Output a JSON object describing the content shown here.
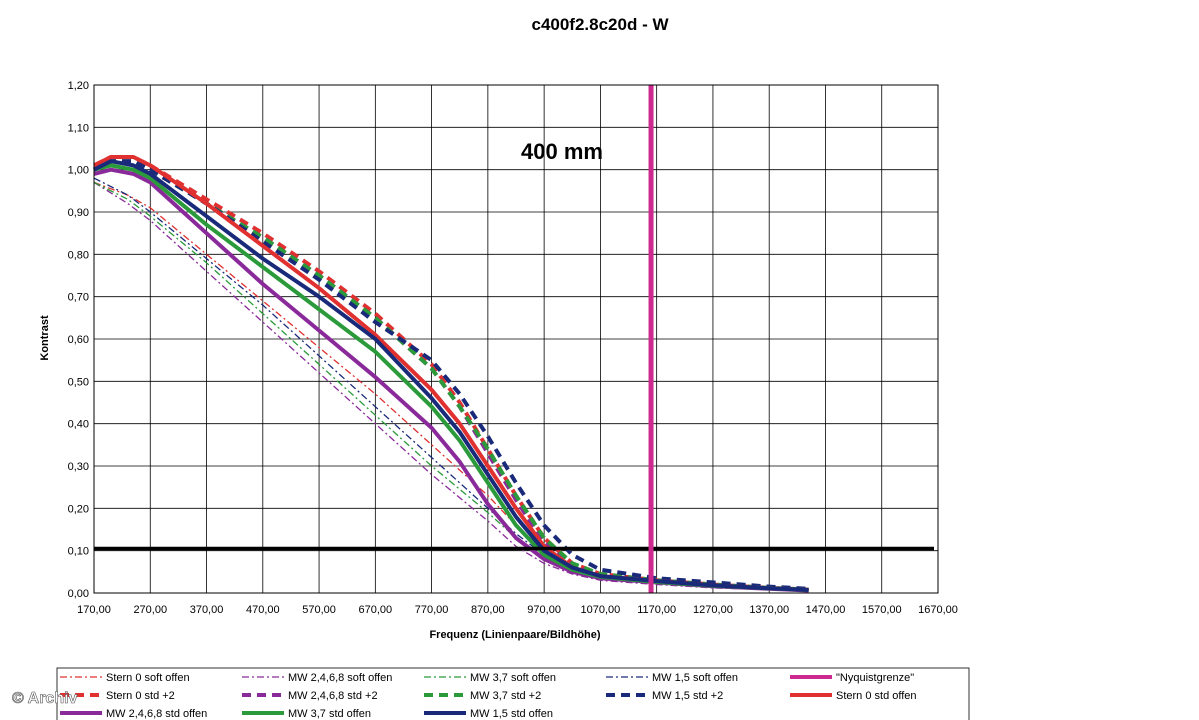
{
  "chart_data": {
    "type": "line",
    "title": "c400f2.8c20d - W",
    "xlabel": "Frequenz (Linienpaare/Bildhöhe)",
    "ylabel": "Kontrast",
    "xlim": [
      170,
      1670
    ],
    "ylim": [
      0,
      1.2
    ],
    "x_ticks": [
      "170,00",
      "270,00",
      "370,00",
      "470,00",
      "570,00",
      "670,00",
      "770,00",
      "870,00",
      "970,00",
      "1070,00",
      "1170,00",
      "1270,00",
      "1370,00",
      "1470,00",
      "1570,00",
      "1670,00"
    ],
    "y_ticks": [
      "0,00",
      "0,10",
      "0,20",
      "0,30",
      "0,40",
      "0,50",
      "0,60",
      "0,70",
      "0,80",
      "0,90",
      "1,00",
      "1,10",
      "1,20"
    ],
    "grid": true,
    "legend_position": "bottom",
    "annotation": "400 mm",
    "watermark": "© Archiv",
    "threshold_line": {
      "y": 0.105,
      "color": "#000000"
    },
    "nyquist_line": {
      "x": 1160,
      "color": "#cc2a8e"
    },
    "series": [
      {
        "name": "Stern 0 soft offen",
        "color": "#e03030",
        "style": "dashdot",
        "width": 1.3,
        "x": [
          170,
          230,
          270,
          370,
          470,
          570,
          670,
          770,
          870,
          920,
          970,
          1020,
          1070,
          1170,
          1270,
          1370,
          1440
        ],
        "y": [
          0.97,
          0.94,
          0.91,
          0.8,
          0.69,
          0.58,
          0.47,
          0.35,
          0.23,
          0.16,
          0.1,
          0.06,
          0.04,
          0.025,
          0.015,
          0.01,
          0.005
        ]
      },
      {
        "name": "MW 2,4,6,8 soft offen",
        "color": "#8a2a9a",
        "style": "dashdot",
        "width": 1.3,
        "x": [
          170,
          230,
          270,
          370,
          470,
          570,
          670,
          770,
          870,
          920,
          970,
          1020,
          1070,
          1170,
          1270,
          1370,
          1440
        ],
        "y": [
          0.97,
          0.92,
          0.88,
          0.76,
          0.64,
          0.52,
          0.4,
          0.28,
          0.17,
          0.11,
          0.07,
          0.045,
          0.03,
          0.02,
          0.012,
          0.008,
          0.005
        ]
      },
      {
        "name": "MW 3,7 soft offen",
        "color": "#2a9a3a",
        "style": "dashdot",
        "width": 1.3,
        "x": [
          170,
          230,
          270,
          370,
          470,
          570,
          670,
          770,
          870,
          920,
          970,
          1020,
          1070,
          1170,
          1270,
          1370,
          1440
        ],
        "y": [
          0.97,
          0.93,
          0.89,
          0.78,
          0.66,
          0.54,
          0.42,
          0.3,
          0.19,
          0.13,
          0.08,
          0.05,
          0.035,
          0.022,
          0.014,
          0.009,
          0.005
        ]
      },
      {
        "name": "MW 1,5 soft offen",
        "color": "#1a2a7a",
        "style": "dashdot",
        "width": 1.3,
        "x": [
          170,
          230,
          270,
          370,
          470,
          570,
          670,
          770,
          870,
          920,
          970,
          1020,
          1070,
          1170,
          1270,
          1370,
          1440
        ],
        "y": [
          0.98,
          0.94,
          0.9,
          0.79,
          0.68,
          0.56,
          0.44,
          0.32,
          0.2,
          0.14,
          0.09,
          0.055,
          0.038,
          0.024,
          0.015,
          0.01,
          0.006
        ]
      },
      {
        "name": "\"Nyquistgrenze\"",
        "color": "#cc2a8e",
        "style": "solid",
        "width": 5,
        "x": [
          1160,
          1160
        ],
        "y": [
          0,
          1.2
        ]
      },
      {
        "name": "Stern 0 std +2",
        "color": "#e03030",
        "style": "dash",
        "width": 4,
        "x": [
          170,
          200,
          240,
          270,
          370,
          470,
          570,
          670,
          770,
          820,
          870,
          920,
          970,
          1020,
          1070,
          1170,
          1270,
          1370,
          1440
        ],
        "y": [
          1.01,
          1.03,
          1.03,
          1.01,
          0.93,
          0.85,
          0.76,
          0.66,
          0.54,
          0.45,
          0.34,
          0.23,
          0.13,
          0.07,
          0.045,
          0.03,
          0.02,
          0.012,
          0.008
        ]
      },
      {
        "name": "MW 2,4,6,8 std +2",
        "color": "#8a2a9a",
        "style": "dash",
        "width": 4,
        "x": [
          170,
          200,
          240,
          270,
          370,
          470,
          570,
          670,
          770,
          820,
          870,
          920,
          970,
          1020,
          1070,
          1170,
          1270,
          1370,
          1440
        ],
        "y": [
          1.0,
          1.02,
          1.02,
          1.0,
          0.92,
          0.84,
          0.75,
          0.65,
          0.53,
          0.44,
          0.33,
          0.22,
          0.12,
          0.065,
          0.04,
          0.028,
          0.018,
          0.011,
          0.007
        ]
      },
      {
        "name": "MW 3,7 std +2",
        "color": "#2a9a3a",
        "style": "dash",
        "width": 4,
        "x": [
          170,
          200,
          240,
          270,
          370,
          470,
          570,
          670,
          770,
          820,
          870,
          920,
          970,
          1020,
          1070,
          1170,
          1270,
          1370,
          1440
        ],
        "y": [
          1.0,
          1.02,
          1.02,
          1.0,
          0.92,
          0.84,
          0.75,
          0.65,
          0.53,
          0.44,
          0.34,
          0.23,
          0.13,
          0.07,
          0.045,
          0.03,
          0.02,
          0.012,
          0.008
        ]
      },
      {
        "name": "MW 1,5 std +2",
        "color": "#1a2a7a",
        "style": "dash",
        "width": 4,
        "x": [
          170,
          200,
          240,
          270,
          370,
          470,
          570,
          670,
          770,
          820,
          870,
          920,
          970,
          1020,
          1070,
          1170,
          1270,
          1370,
          1440
        ],
        "y": [
          1.0,
          1.02,
          1.02,
          1.0,
          0.92,
          0.83,
          0.74,
          0.64,
          0.55,
          0.47,
          0.37,
          0.26,
          0.16,
          0.09,
          0.055,
          0.035,
          0.025,
          0.015,
          0.01
        ]
      },
      {
        "name": "Stern 0 std offen",
        "color": "#e03030",
        "style": "solid",
        "width": 4,
        "x": [
          170,
          200,
          240,
          270,
          370,
          470,
          570,
          670,
          770,
          820,
          870,
          920,
          970,
          1020,
          1070,
          1170,
          1270,
          1370,
          1440
        ],
        "y": [
          1.01,
          1.03,
          1.03,
          1.01,
          0.92,
          0.82,
          0.72,
          0.61,
          0.48,
          0.4,
          0.3,
          0.2,
          0.11,
          0.06,
          0.04,
          0.028,
          0.018,
          0.011,
          0.007
        ]
      },
      {
        "name": "MW 2,4,6,8 std offen",
        "color": "#8a2a9a",
        "style": "solid",
        "width": 4,
        "x": [
          170,
          200,
          240,
          270,
          370,
          470,
          570,
          670,
          770,
          820,
          870,
          920,
          970,
          1020,
          1070,
          1170,
          1270,
          1370,
          1440
        ],
        "y": [
          0.99,
          1.0,
          0.99,
          0.97,
          0.85,
          0.73,
          0.62,
          0.51,
          0.39,
          0.31,
          0.21,
          0.13,
          0.08,
          0.05,
          0.035,
          0.025,
          0.016,
          0.01,
          0.006
        ]
      },
      {
        "name": "MW 3,7 std offen",
        "color": "#2a9a3a",
        "style": "solid",
        "width": 4,
        "x": [
          170,
          200,
          240,
          270,
          370,
          470,
          570,
          670,
          770,
          820,
          870,
          920,
          970,
          1020,
          1070,
          1170,
          1270,
          1370,
          1440
        ],
        "y": [
          1.0,
          1.01,
          1.0,
          0.98,
          0.87,
          0.77,
          0.67,
          0.57,
          0.44,
          0.36,
          0.26,
          0.16,
          0.09,
          0.055,
          0.038,
          0.026,
          0.017,
          0.011,
          0.007
        ]
      },
      {
        "name": "MW 1,5 std offen",
        "color": "#1a2a7a",
        "style": "solid",
        "width": 4,
        "x": [
          170,
          200,
          240,
          270,
          370,
          470,
          570,
          670,
          770,
          820,
          870,
          920,
          970,
          1020,
          1070,
          1170,
          1270,
          1370,
          1440
        ],
        "y": [
          1.0,
          1.02,
          1.01,
          0.99,
          0.89,
          0.79,
          0.7,
          0.6,
          0.46,
          0.38,
          0.28,
          0.18,
          0.1,
          0.06,
          0.04,
          0.028,
          0.018,
          0.011,
          0.007
        ]
      }
    ]
  }
}
